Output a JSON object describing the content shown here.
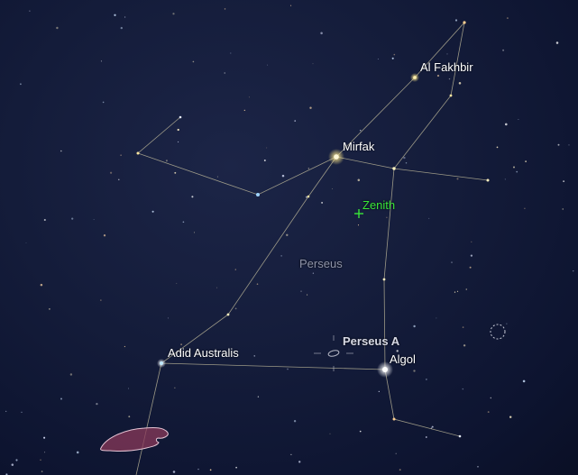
{
  "labels": {
    "al_fakhbir": "Al Fakhbir",
    "mirfak": "Mirfak",
    "zenith": "Zenith",
    "constellation": "Perseus",
    "perseus_a": "Perseus A",
    "algol": "Algol",
    "adid_australis": "Adid Australis"
  },
  "colors": {
    "zenith": "#39e639",
    "constellation_lines": "#c9c3a0",
    "constellation_label": "#8e93a8",
    "nebula_fill": "#8a3a5a",
    "nebula_outline": "#e6c4d4"
  },
  "icons": {
    "zenith_marker": "plus-marker-icon",
    "galaxy_marker": "galaxy-ellipse-icon",
    "cluster_marker": "dashed-circle-icon"
  }
}
